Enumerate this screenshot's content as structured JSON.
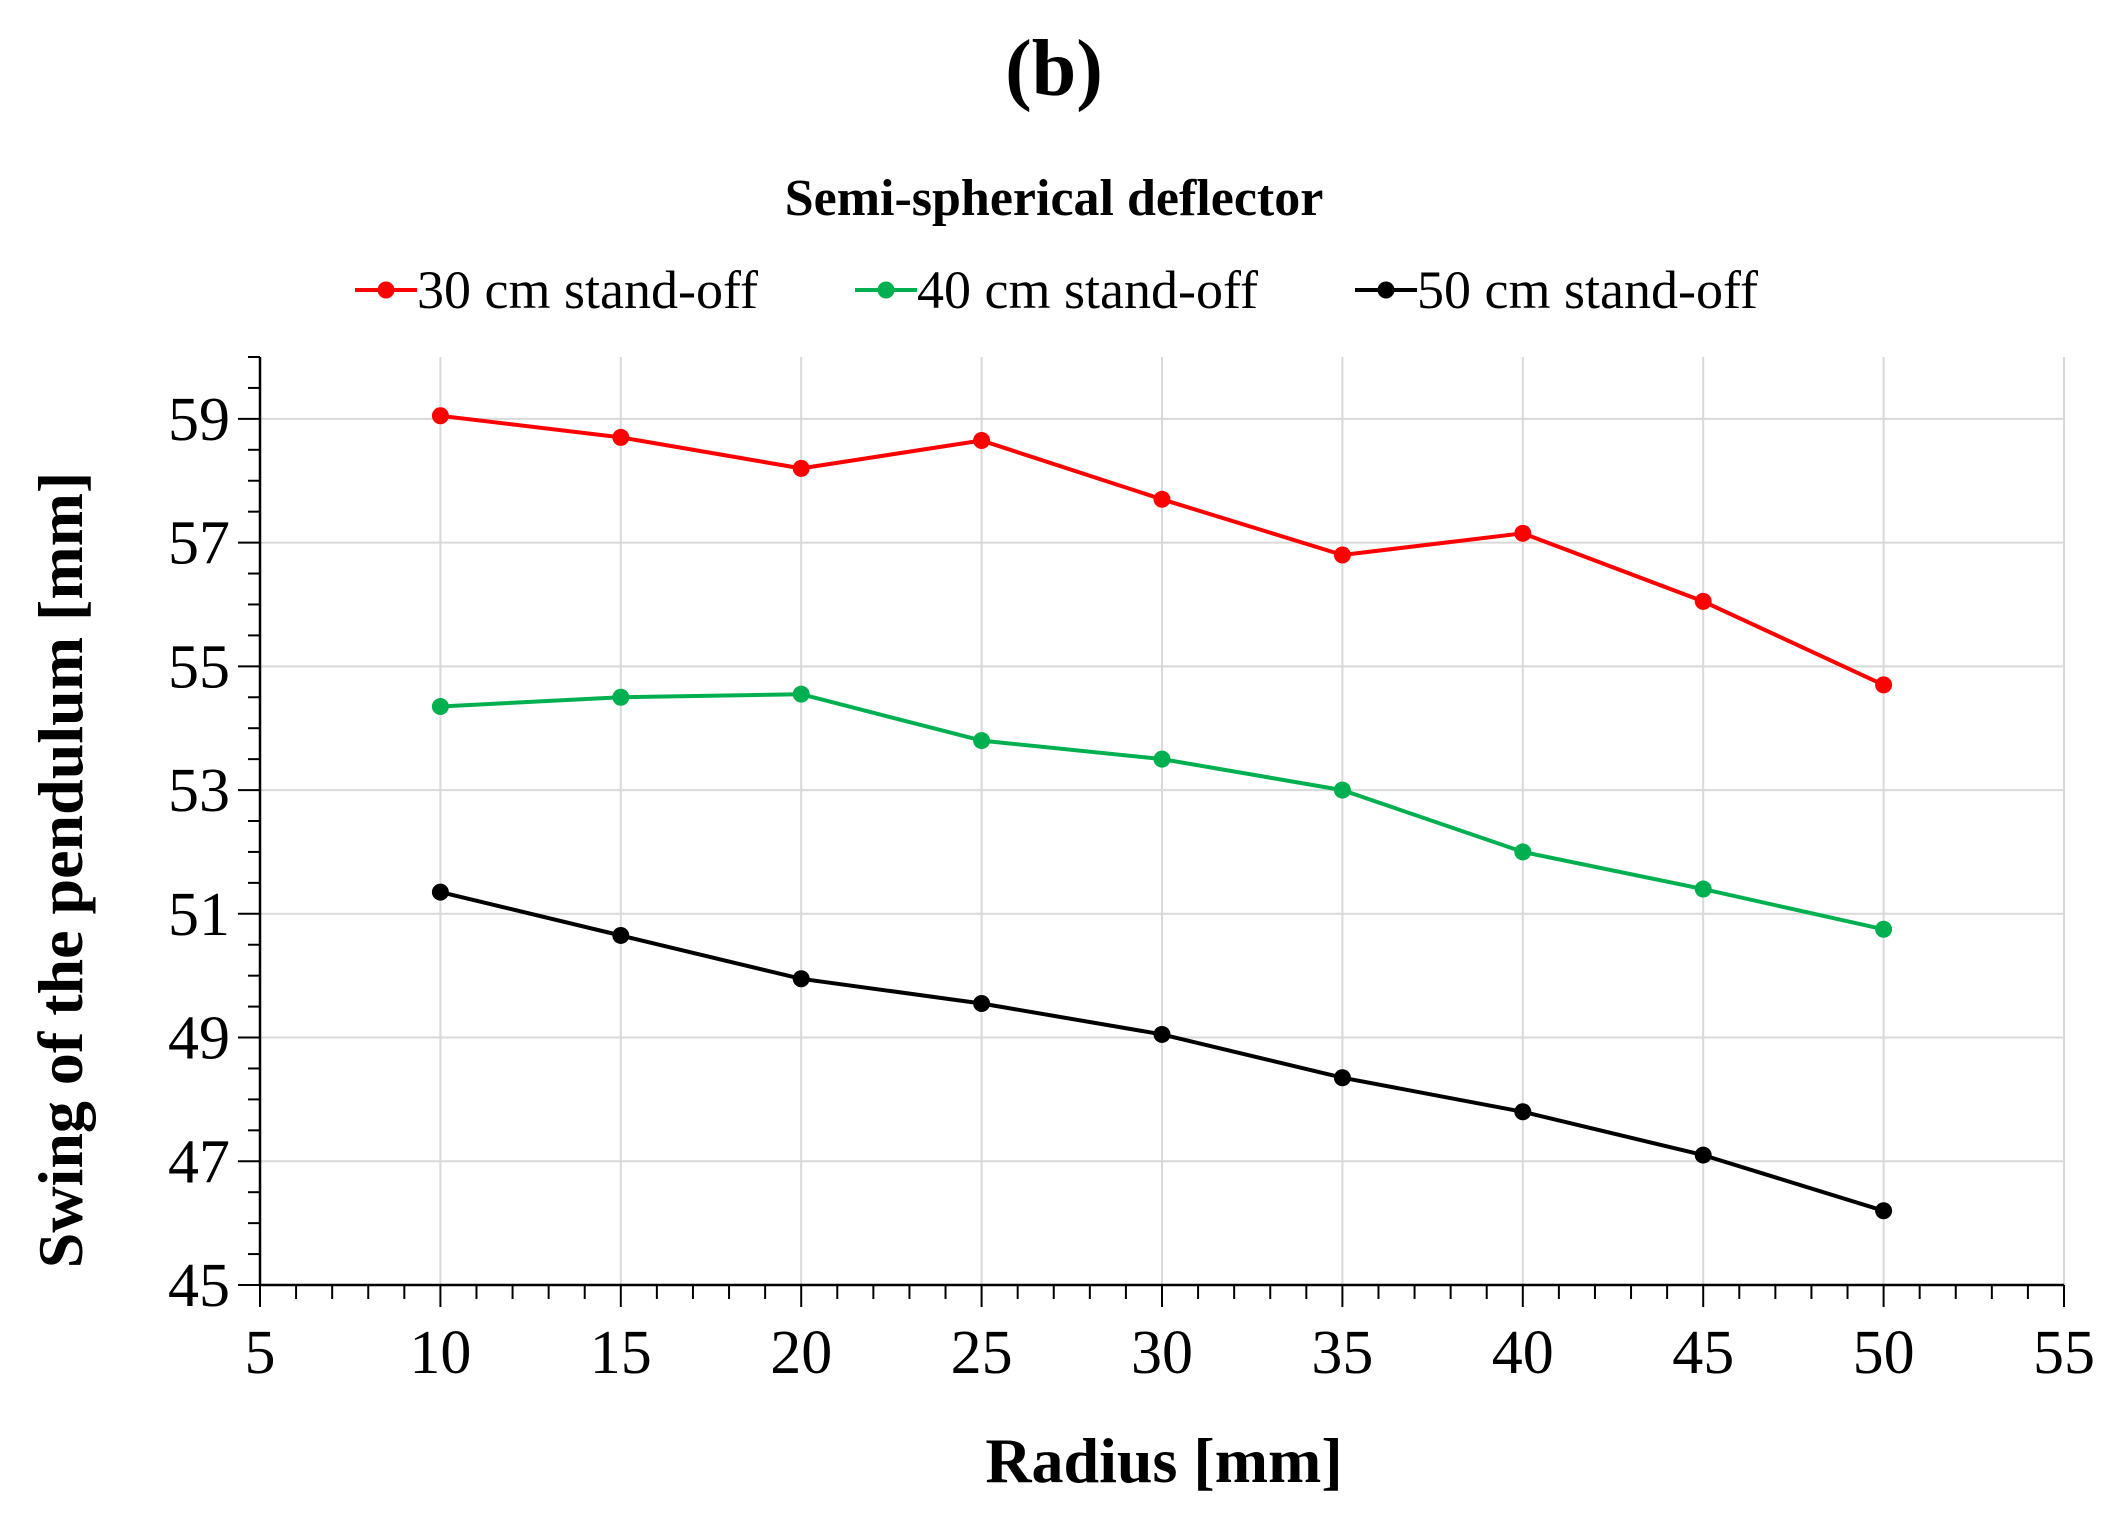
{
  "panel_label": "(b)",
  "chart_data": {
    "type": "line",
    "title": "Semi-spherical deflector",
    "xlabel": "Radius [mm]",
    "ylabel": "Swing of the pendulum [mm]",
    "xlim": [
      5,
      55
    ],
    "ylim": [
      45,
      60
    ],
    "xticks": [
      "5",
      "10",
      "15",
      "20",
      "25",
      "30",
      "35",
      "40",
      "45",
      "50",
      "55"
    ],
    "yticks": [
      "45",
      "47",
      "49",
      "51",
      "53",
      "55",
      "57",
      "59"
    ],
    "grid": true,
    "legend_position": "top",
    "x": [
      10,
      15,
      20,
      25,
      30,
      35,
      40,
      45,
      50
    ],
    "series": [
      {
        "name": "30 cm stand-off",
        "color": "#ff0000",
        "values": [
          59.05,
          58.7,
          58.2,
          58.65,
          57.7,
          56.8,
          57.15,
          56.05,
          54.7
        ]
      },
      {
        "name": "40 cm stand-off",
        "color": "#00b050",
        "values": [
          54.35,
          54.5,
          54.55,
          53.8,
          53.5,
          53.0,
          52.0,
          51.4,
          50.75
        ]
      },
      {
        "name": "50 cm stand-off",
        "color": "#000000",
        "values": [
          51.35,
          50.65,
          49.95,
          49.55,
          49.05,
          48.35,
          47.8,
          47.1,
          46.2
        ]
      }
    ]
  }
}
